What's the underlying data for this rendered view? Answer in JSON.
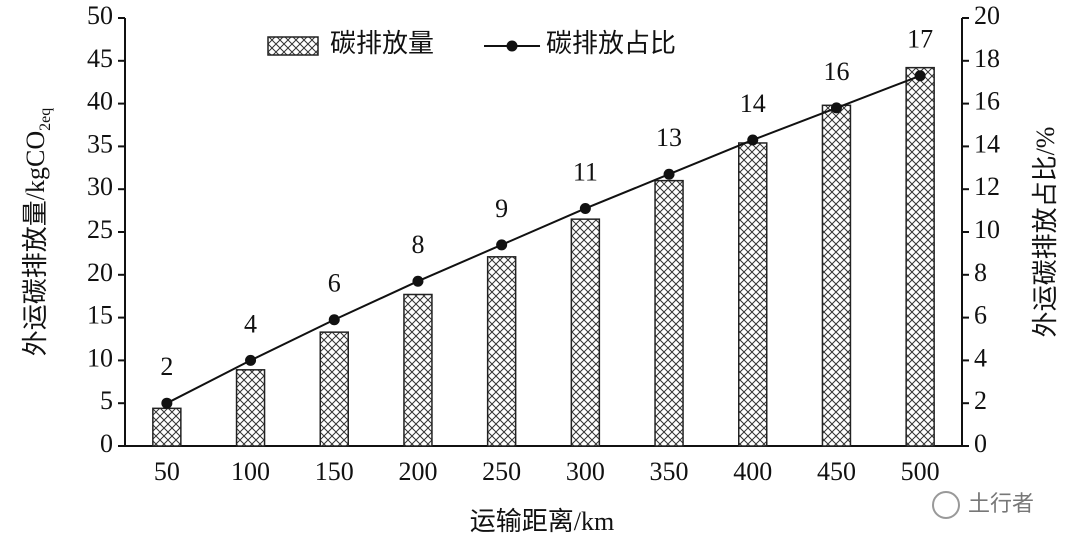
{
  "chart_data": {
    "type": "bar_line",
    "x_label": "运输距离/km",
    "y_label": "外运碳排放量/kgCO",
    "y_label_subscript": "2eq",
    "y2_label": "外运碳排放占比/%",
    "categories": [
      "50",
      "100",
      "150",
      "200",
      "250",
      "300",
      "350",
      "400",
      "450",
      "500"
    ],
    "series": [
      {
        "name": "碳排放量",
        "type": "bar",
        "color": "#222222",
        "values": [
          4.4,
          8.9,
          13.3,
          17.7,
          22.1,
          26.5,
          31.0,
          35.4,
          39.8,
          44.2
        ]
      },
      {
        "name": "碳排放占比",
        "type": "line",
        "axis": "y2",
        "color": "#111111",
        "values": [
          2.0,
          4.0,
          5.9,
          7.7,
          9.4,
          11.1,
          12.7,
          14.3,
          15.8,
          17.3
        ],
        "value_labels": [
          "2",
          "4",
          "6",
          "8",
          "9",
          "11",
          "13",
          "14",
          "16",
          "17"
        ]
      }
    ],
    "ylim": [
      0,
      50
    ],
    "yticks": [
      0,
      5,
      10,
      15,
      20,
      25,
      30,
      35,
      40,
      45,
      50
    ],
    "y2lim": [
      0,
      20
    ],
    "y2ticks": [
      0,
      2,
      4,
      6,
      8,
      10,
      12,
      14,
      16,
      18,
      20
    ],
    "legend": "top"
  },
  "watermark": "土行者"
}
